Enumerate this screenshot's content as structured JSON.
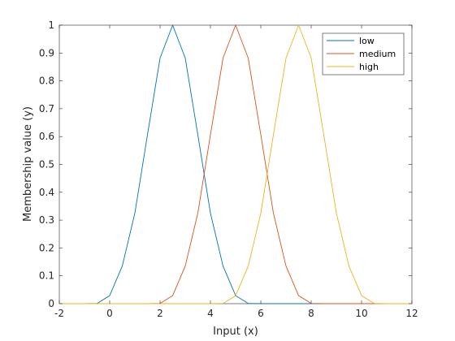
{
  "colors": {
    "series": [
      "#0072BD",
      "#D95319",
      "#EDB120"
    ],
    "axis": "#262626",
    "background": "#ffffff"
  },
  "chart_data": {
    "type": "line",
    "xlabel": "Input (x)",
    "ylabel": "Membership value (y)",
    "xlim": [
      -2,
      12
    ],
    "ylim": [
      0,
      1
    ],
    "xticks": [
      -2,
      0,
      2,
      4,
      6,
      8,
      10,
      12
    ],
    "xtick_labels": [
      "-2",
      "0",
      "2",
      "4",
      "6",
      "8",
      "10",
      "12"
    ],
    "yticks": [
      0,
      0.1,
      0.2,
      0.3,
      0.4,
      0.5,
      0.6,
      0.7,
      0.8,
      0.9,
      1
    ],
    "ytick_labels": [
      "0",
      "0.1",
      "0.2",
      "0.3",
      "0.4",
      "0.5",
      "0.6",
      "0.7",
      "0.8",
      "0.9",
      "1"
    ],
    "grid": false,
    "legend_position": "top-right",
    "x": [
      -2,
      -1,
      -0.5,
      0,
      0.5,
      1,
      1.5,
      2,
      2.5,
      3,
      3.5,
      4,
      4.5,
      5,
      5.5,
      6,
      6.5,
      7,
      7.5,
      8,
      8.5,
      9,
      9.5,
      10,
      10.5,
      11,
      12
    ],
    "series": [
      {
        "name": "low",
        "values": [
          0,
          0,
          0.001,
          0.029,
          0.135,
          0.325,
          0.606,
          0.882,
          1,
          0.882,
          0.606,
          0.325,
          0.135,
          0.029,
          0.001,
          0,
          0,
          0,
          0,
          0,
          0,
          0,
          0,
          0,
          0,
          0,
          0
        ]
      },
      {
        "name": "medium",
        "values": [
          0,
          0,
          0,
          0,
          0,
          0,
          0,
          0.001,
          0.029,
          0.135,
          0.325,
          0.606,
          0.882,
          1,
          0.882,
          0.606,
          0.325,
          0.135,
          0.029,
          0.001,
          0,
          0,
          0,
          0,
          0,
          0,
          0
        ]
      },
      {
        "name": "high",
        "values": [
          0,
          0,
          0,
          0,
          0,
          0,
          0,
          0,
          0,
          0,
          0,
          0,
          0.001,
          0.029,
          0.135,
          0.325,
          0.606,
          0.882,
          1,
          0.882,
          0.606,
          0.325,
          0.135,
          0.029,
          0.001,
          0,
          0
        ]
      }
    ]
  }
}
